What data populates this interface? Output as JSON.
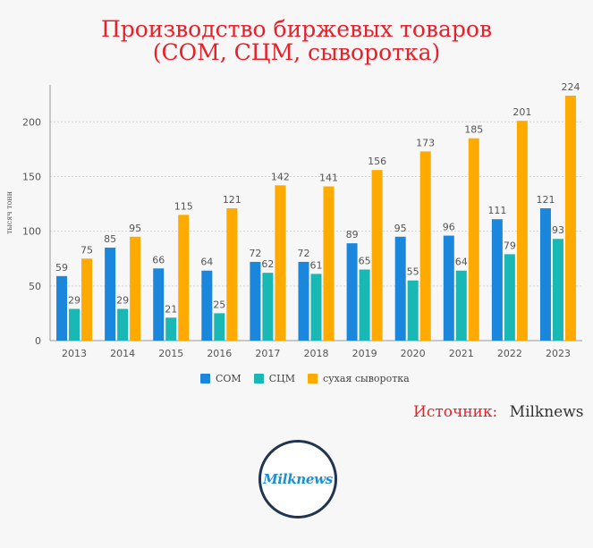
{
  "title_line1": "Производство биржевых товаров",
  "title_line2": "(СОМ, СЦМ, сыворотка)",
  "source_label": "Источник:",
  "source_value": "Milknews",
  "logo_text": "Milknews",
  "chart_data": {
    "type": "bar",
    "title": "Производство биржевых товаров (СОМ, СЦМ, сыворотка)",
    "ylabel": "тысяч тонн",
    "xlabel": "",
    "ylim": [
      0,
      224
    ],
    "yticks": [
      0,
      50,
      100,
      150,
      200
    ],
    "grid": "horizontal",
    "legend_position": "bottom",
    "categories": [
      "2013",
      "2014",
      "2015",
      "2016",
      "2017",
      "2018",
      "2019",
      "2020",
      "2021",
      "2022",
      "2023"
    ],
    "series": [
      {
        "name": "СОМ",
        "color": "#1a87dc",
        "values": [
          59,
          85,
          66,
          64,
          72,
          72,
          89,
          95,
          96,
          111,
          121
        ]
      },
      {
        "name": "СЦМ",
        "color": "#19b8b4",
        "values": [
          29,
          29,
          21,
          25,
          62,
          61,
          65,
          55,
          64,
          79,
          93
        ]
      },
      {
        "name": "сухая сыворотка",
        "color": "#ffaa00",
        "values": [
          75,
          95,
          115,
          121,
          142,
          141,
          156,
          173,
          185,
          201,
          224
        ]
      }
    ]
  }
}
